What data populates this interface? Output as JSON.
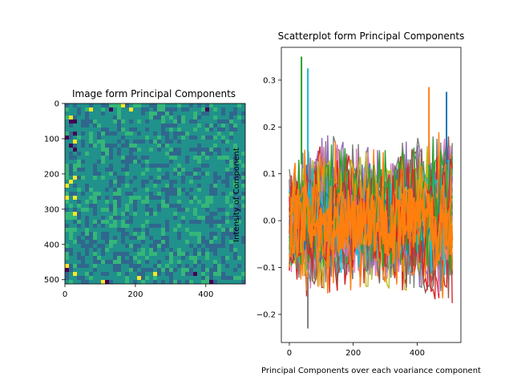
{
  "chart_data": [
    {
      "type": "heatmap",
      "title": "Image form Principal Components",
      "xlabel": "",
      "ylabel": "",
      "xlim": [
        0,
        512
      ],
      "ylim": [
        512,
        0
      ],
      "x_ticks": [
        "0",
        "200",
        "400"
      ],
      "x_tick_values": [
        0,
        200,
        400
      ],
      "y_ticks": [
        "0",
        "100",
        "200",
        "300",
        "400",
        "500"
      ],
      "y_tick_values": [
        0,
        100,
        200,
        300,
        400,
        500
      ],
      "colormap": [
        "#30678d",
        "#21918c",
        "#35b779",
        "#fde725",
        "#440154"
      ],
      "grid": false
    },
    {
      "type": "line",
      "title": "Scatterplot form Principal Components",
      "xlabel": "Principal Components over each voariance component",
      "ylabel": "Intensity of Component",
      "xlim": [
        -25,
        537
      ],
      "ylim": [
        -0.26,
        0.37
      ],
      "x_ticks": [
        "0",
        "200",
        "400"
      ],
      "x_tick_values": [
        0,
        200,
        400
      ],
      "y_ticks": [
        "0.3",
        "0.2",
        "0.1",
        "0.0",
        "−0.1",
        "−0.2"
      ],
      "y_tick_values": [
        0.3,
        0.2,
        0.1,
        0.0,
        -0.1,
        -0.2
      ],
      "grid": false,
      "series_colors": [
        "#1f77b4",
        "#ff7f0e",
        "#2ca02c",
        "#d62728",
        "#9467bd",
        "#8c564b",
        "#e377c2",
        "#7f7f7f",
        "#bcbd22",
        "#17becf"
      ],
      "x_max": 511,
      "envelope_upper": [
        0.12,
        0.15,
        0.19,
        0.18,
        0.17,
        0.16,
        0.15,
        0.16,
        0.17,
        0.18,
        0.19,
        0.22
      ],
      "envelope_lower": [
        -0.12,
        -0.16,
        -0.17,
        -0.16,
        -0.15,
        -0.14,
        -0.14,
        -0.15,
        -0.16,
        -0.17,
        -0.18,
        -0.19
      ],
      "peaks": [
        {
          "x": 38,
          "y": 0.35
        },
        {
          "x": 58,
          "y": 0.325
        },
        {
          "x": 58,
          "y": -0.23
        },
        {
          "x": 437,
          "y": 0.285
        },
        {
          "x": 492,
          "y": 0.275
        }
      ]
    }
  ]
}
